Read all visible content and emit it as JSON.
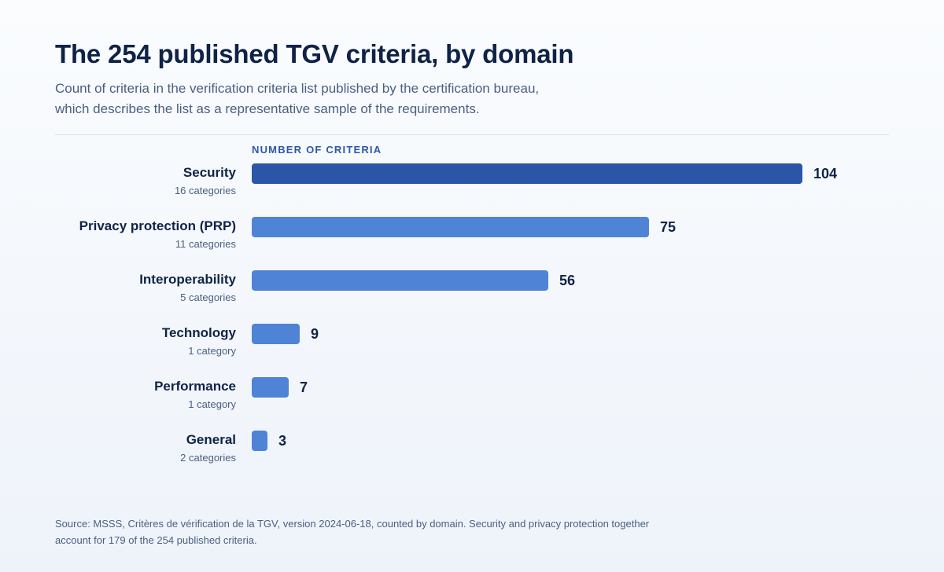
{
  "header": {
    "title": "The 254 published TGV criteria, by domain",
    "subtitle": "Count of criteria in the verification criteria list published by the certification bureau, which describes the list as a representative sample of the requirements."
  },
  "footer": {
    "source": "Source: MSSS, Critères de vérification de la TGV, version 2024-06-18, counted by domain. Security and privacy protection together account for 179 of the 254 published criteria."
  },
  "chart_data": {
    "type": "bar",
    "orientation": "horizontal",
    "title": "The 254 published TGV criteria, by domain",
    "subtitle": "Count of criteria in the verification criteria list published by the certification bureau, which describes the list as a representative sample of the requirements.",
    "xlabel": "NUMBER OF CRITERIA",
    "ylabel": "",
    "xlim": [
      0,
      104
    ],
    "grid": false,
    "categories": [
      "Security",
      "Privacy protection (PRP)",
      "Interoperability",
      "Technology",
      "Performance",
      "General"
    ],
    "category_notes": [
      "16 categories",
      "11 categories",
      "5 categories",
      "1 category",
      "1 category",
      "2 categories"
    ],
    "values": [
      104,
      75,
      56,
      9,
      7,
      3
    ],
    "colors": {
      "highlight": "#2b56a8",
      "default": "#4f83d6"
    },
    "highlighted_category": "Security"
  }
}
